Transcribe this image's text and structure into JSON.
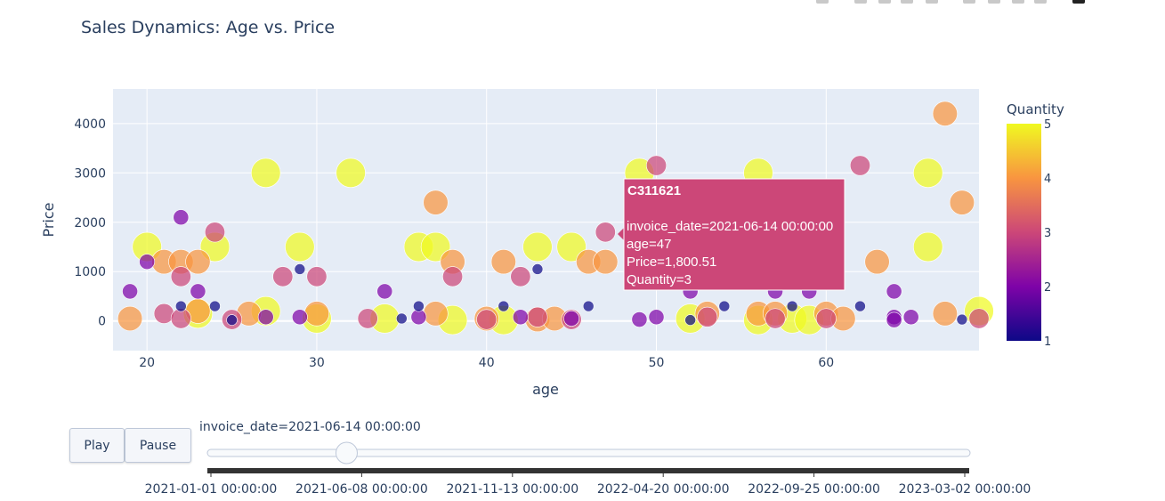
{
  "title": "Sales Dynamics: Age vs. Price",
  "colors": {
    "plot_bg": "#e5ecf6",
    "grid": "#ffffff",
    "text": "#2a3f5f",
    "tooltip_bg": "#cc4778",
    "colorscale": [
      "#0d0887",
      "#7e03a8",
      "#cc4778",
      "#f89540",
      "#f0f921"
    ]
  },
  "chart_data": {
    "type": "scatter",
    "xlabel": "age",
    "ylabel": "Price",
    "xlim": [
      18,
      69
    ],
    "ylim": [
      -600,
      4700
    ],
    "x_ticks": [
      20,
      30,
      40,
      50,
      60
    ],
    "y_ticks": [
      0,
      1000,
      2000,
      3000,
      4000
    ],
    "y_tick_labels": [
      "0",
      "1000",
      "2000",
      "3000",
      "4000"
    ],
    "color_by": "Quantity",
    "color_range": [
      1,
      5
    ],
    "colorbar_ticks": [
      1,
      2,
      3,
      4,
      5
    ],
    "points": [
      {
        "x": 20,
        "y": 1500,
        "q": 5
      },
      {
        "x": 21,
        "y": 1200,
        "q": 4
      },
      {
        "x": 22,
        "y": 1200,
        "q": 4
      },
      {
        "x": 23,
        "y": 1200,
        "q": 4
      },
      {
        "x": 24,
        "y": 1500,
        "q": 5
      },
      {
        "x": 27,
        "y": 3000,
        "q": 5
      },
      {
        "x": 29,
        "y": 1500,
        "q": 5
      },
      {
        "x": 32,
        "y": 3000,
        "q": 5
      },
      {
        "x": 36,
        "y": 1500,
        "q": 5
      },
      {
        "x": 37,
        "y": 1500,
        "q": 5
      },
      {
        "x": 37,
        "y": 2400,
        "q": 4
      },
      {
        "x": 38,
        "y": 1200,
        "q": 4
      },
      {
        "x": 41,
        "y": 1200,
        "q": 4
      },
      {
        "x": 43,
        "y": 1500,
        "q": 5
      },
      {
        "x": 45,
        "y": 1500,
        "q": 5
      },
      {
        "x": 46,
        "y": 1200,
        "q": 4
      },
      {
        "x": 47,
        "y": 1200,
        "q": 4
      },
      {
        "x": 47,
        "y": 1800.51,
        "q": 3
      },
      {
        "x": 49,
        "y": 3000,
        "q": 5
      },
      {
        "x": 50,
        "y": 3150,
        "q": 3
      },
      {
        "x": 56,
        "y": 3000,
        "q": 5
      },
      {
        "x": 62,
        "y": 3150,
        "q": 3
      },
      {
        "x": 63,
        "y": 1200,
        "q": 4
      },
      {
        "x": 66,
        "y": 3000,
        "q": 5
      },
      {
        "x": 66,
        "y": 1500,
        "q": 5
      },
      {
        "x": 67,
        "y": 4200,
        "q": 4
      },
      {
        "x": 68,
        "y": 2400,
        "q": 4
      },
      {
        "x": 22,
        "y": 2100,
        "q": 2
      },
      {
        "x": 20,
        "y": 1200,
        "q": 2
      },
      {
        "x": 19,
        "y": 600,
        "q": 2
      },
      {
        "x": 24,
        "y": 1800,
        "q": 3
      },
      {
        "x": 22,
        "y": 900,
        "q": 3
      },
      {
        "x": 23,
        "y": 600,
        "q": 2
      },
      {
        "x": 28,
        "y": 900,
        "q": 3
      },
      {
        "x": 29,
        "y": 1050,
        "q": 1
      },
      {
        "x": 30,
        "y": 900,
        "q": 3
      },
      {
        "x": 34,
        "y": 600,
        "q": 2
      },
      {
        "x": 38,
        "y": 900,
        "q": 3
      },
      {
        "x": 42,
        "y": 900,
        "q": 3
      },
      {
        "x": 43,
        "y": 1050,
        "q": 1
      },
      {
        "x": 64,
        "y": 600,
        "q": 2
      },
      {
        "x": 52,
        "y": 600,
        "q": 2
      },
      {
        "x": 57,
        "y": 600,
        "q": 2
      },
      {
        "x": 59,
        "y": 600,
        "q": 2
      },
      {
        "x": 19,
        "y": 50,
        "q": 4
      },
      {
        "x": 21,
        "y": 150,
        "q": 3
      },
      {
        "x": 22,
        "y": 300,
        "q": 1
      },
      {
        "x": 22,
        "y": 50,
        "q": 3
      },
      {
        "x": 23,
        "y": 150,
        "q": 5
      },
      {
        "x": 23,
        "y": 200,
        "q": 4
      },
      {
        "x": 24,
        "y": 300,
        "q": 1
      },
      {
        "x": 25,
        "y": 30,
        "q": 3
      },
      {
        "x": 25,
        "y": 20,
        "q": 1
      },
      {
        "x": 26,
        "y": 150,
        "q": 4
      },
      {
        "x": 27,
        "y": 200,
        "q": 5
      },
      {
        "x": 27,
        "y": 80,
        "q": 2
      },
      {
        "x": 29,
        "y": 80,
        "q": 2
      },
      {
        "x": 30,
        "y": 50,
        "q": 5
      },
      {
        "x": 30,
        "y": 150,
        "q": 4
      },
      {
        "x": 33,
        "y": 50,
        "q": 3
      },
      {
        "x": 34,
        "y": 50,
        "q": 5
      },
      {
        "x": 35,
        "y": 50,
        "q": 1
      },
      {
        "x": 36,
        "y": 300,
        "q": 1
      },
      {
        "x": 36,
        "y": 80,
        "q": 2
      },
      {
        "x": 37,
        "y": 150,
        "q": 4
      },
      {
        "x": 38,
        "y": 20,
        "q": 5
      },
      {
        "x": 40,
        "y": 50,
        "q": 4
      },
      {
        "x": 40,
        "y": 30,
        "q": 3
      },
      {
        "x": 41,
        "y": 20,
        "q": 5
      },
      {
        "x": 41,
        "y": 300,
        "q": 1
      },
      {
        "x": 42,
        "y": 80,
        "q": 2
      },
      {
        "x": 43,
        "y": 30,
        "q": 4
      },
      {
        "x": 43,
        "y": 80,
        "q": 3
      },
      {
        "x": 44,
        "y": 50,
        "q": 4
      },
      {
        "x": 45,
        "y": 30,
        "q": 3
      },
      {
        "x": 45,
        "y": 50,
        "q": 2
      },
      {
        "x": 46,
        "y": 300,
        "q": 1
      },
      {
        "x": 49,
        "y": 30,
        "q": 2
      },
      {
        "x": 50,
        "y": 80,
        "q": 2
      },
      {
        "x": 52,
        "y": 50,
        "q": 5
      },
      {
        "x": 52,
        "y": 20,
        "q": 1
      },
      {
        "x": 53,
        "y": 80,
        "q": 3
      },
      {
        "x": 53,
        "y": 150,
        "q": 4
      },
      {
        "x": 54,
        "y": 300,
        "q": 1
      },
      {
        "x": 56,
        "y": 150,
        "q": 4
      },
      {
        "x": 56,
        "y": 20,
        "q": 5
      },
      {
        "x": 57,
        "y": 50,
        "q": 3
      },
      {
        "x": 57,
        "y": 150,
        "q": 4
      },
      {
        "x": 58,
        "y": 300,
        "q": 1
      },
      {
        "x": 58,
        "y": 50,
        "q": 5
      },
      {
        "x": 59,
        "y": 20,
        "q": 5
      },
      {
        "x": 60,
        "y": 50,
        "q": 3
      },
      {
        "x": 60,
        "y": 150,
        "q": 4
      },
      {
        "x": 61,
        "y": 50,
        "q": 4
      },
      {
        "x": 62,
        "y": 300,
        "q": 1
      },
      {
        "x": 64,
        "y": 80,
        "q": 2
      },
      {
        "x": 64,
        "y": 20,
        "q": 2
      },
      {
        "x": 65,
        "y": 80,
        "q": 2
      },
      {
        "x": 67,
        "y": 150,
        "q": 4
      },
      {
        "x": 68,
        "y": 30,
        "q": 1
      },
      {
        "x": 69,
        "y": 200,
        "q": 5
      },
      {
        "x": 69,
        "y": 50,
        "q": 3
      }
    ]
  },
  "tooltip": {
    "id": "C311621",
    "lines": [
      "invoice_date=2021-06-14 00:00:00",
      "age=47",
      "Price=1,800.51",
      "Quantity=3"
    ]
  },
  "controls": {
    "play_label": "Play",
    "pause_label": "Pause",
    "slider_current": "invoice_date=2021-06-14 00:00:00",
    "slider_value": 0.18,
    "slider_ticks": [
      "2021-01-01 00:00:00",
      "2021-06-08 00:00:00",
      "2021-11-13 00:00:00",
      "2022-04-20 00:00:00",
      "2022-09-25 00:00:00",
      "2023-03-02 00:00:00"
    ]
  }
}
